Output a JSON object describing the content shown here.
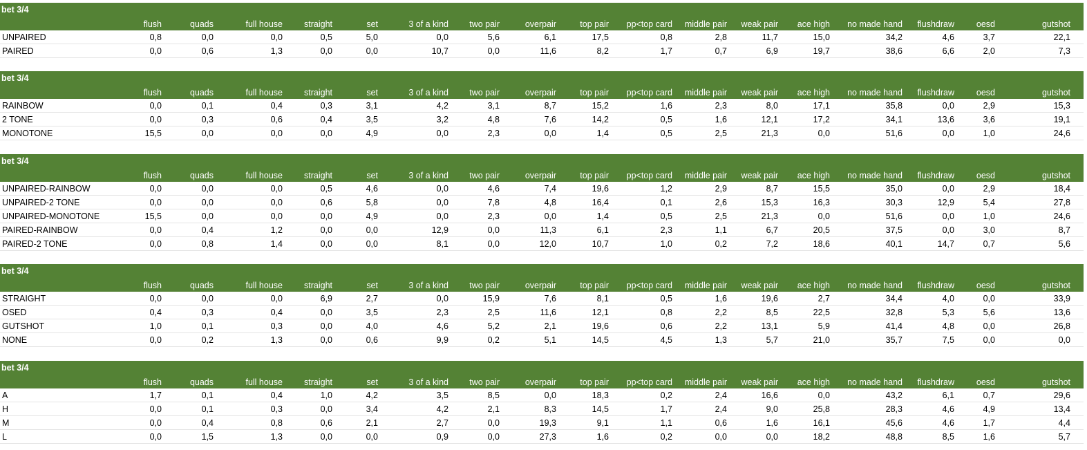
{
  "columns": [
    "flush",
    "quads",
    "full house",
    "straight",
    "set",
    "3 of a kind",
    "two pair",
    "overpair",
    "top pair",
    "pp<top card",
    "middle pair",
    "weak pair",
    "ace high",
    "no made hand",
    "flushdraw",
    "oesd",
    "gutshot"
  ],
  "tables": [
    {
      "title": "bet 3/4",
      "rows": [
        {
          "label": "UNPAIRED",
          "values": [
            "0,8",
            "0,0",
            "0,0",
            "0,5",
            "5,0",
            "0,0",
            "5,6",
            "6,1",
            "17,5",
            "0,8",
            "2,8",
            "11,7",
            "15,0",
            "34,2",
            "4,6",
            "3,7",
            "22,1"
          ]
        },
        {
          "label": "PAIRED",
          "values": [
            "0,0",
            "0,6",
            "1,3",
            "0,0",
            "0,0",
            "10,7",
            "0,0",
            "11,6",
            "8,2",
            "1,7",
            "0,7",
            "6,9",
            "19,7",
            "38,6",
            "6,6",
            "2,0",
            "7,3"
          ]
        }
      ]
    },
    {
      "title": "bet 3/4",
      "rows": [
        {
          "label": "RAINBOW",
          "values": [
            "0,0",
            "0,1",
            "0,4",
            "0,3",
            "3,1",
            "4,2",
            "3,1",
            "8,7",
            "15,2",
            "1,6",
            "2,3",
            "8,0",
            "17,1",
            "35,8",
            "0,0",
            "2,9",
            "15,3"
          ]
        },
        {
          "label": "2 TONE",
          "values": [
            "0,0",
            "0,3",
            "0,6",
            "0,4",
            "3,5",
            "3,2",
            "4,8",
            "7,6",
            "14,2",
            "0,5",
            "1,6",
            "12,1",
            "17,2",
            "34,1",
            "13,6",
            "3,6",
            "19,1"
          ]
        },
        {
          "label": "MONOTONE",
          "values": [
            "15,5",
            "0,0",
            "0,0",
            "0,0",
            "4,9",
            "0,0",
            "2,3",
            "0,0",
            "1,4",
            "0,5",
            "2,5",
            "21,3",
            "0,0",
            "51,6",
            "0,0",
            "1,0",
            "24,6"
          ]
        }
      ]
    },
    {
      "title": "bet 3/4",
      "rows": [
        {
          "label": "UNPAIRED-RAINBOW",
          "values": [
            "0,0",
            "0,0",
            "0,0",
            "0,5",
            "4,6",
            "0,0",
            "4,6",
            "7,4",
            "19,6",
            "1,2",
            "2,9",
            "8,7",
            "15,5",
            "35,0",
            "0,0",
            "2,9",
            "18,4"
          ]
        },
        {
          "label": "UNPAIRED-2 TONE",
          "values": [
            "0,0",
            "0,0",
            "0,0",
            "0,6",
            "5,8",
            "0,0",
            "7,8",
            "4,8",
            "16,4",
            "0,1",
            "2,6",
            "15,3",
            "16,3",
            "30,3",
            "12,9",
            "5,4",
            "27,8"
          ]
        },
        {
          "label": "UNPAIRED-MONOTONE",
          "values": [
            "15,5",
            "0,0",
            "0,0",
            "0,0",
            "4,9",
            "0,0",
            "2,3",
            "0,0",
            "1,4",
            "0,5",
            "2,5",
            "21,3",
            "0,0",
            "51,6",
            "0,0",
            "1,0",
            "24,6"
          ]
        },
        {
          "label": "PAIRED-RAINBOW",
          "values": [
            "0,0",
            "0,4",
            "1,2",
            "0,0",
            "0,0",
            "12,9",
            "0,0",
            "11,3",
            "6,1",
            "2,3",
            "1,1",
            "6,7",
            "20,5",
            "37,5",
            "0,0",
            "3,0",
            "8,7"
          ]
        },
        {
          "label": "PAIRED-2 TONE",
          "values": [
            "0,0",
            "0,8",
            "1,4",
            "0,0",
            "0,0",
            "8,1",
            "0,0",
            "12,0",
            "10,7",
            "1,0",
            "0,2",
            "7,2",
            "18,6",
            "40,1",
            "14,7",
            "0,7",
            "5,6"
          ]
        }
      ]
    },
    {
      "title": "bet 3/4",
      "rows": [
        {
          "label": "STRAIGHT",
          "values": [
            "0,0",
            "0,0",
            "0,0",
            "6,9",
            "2,7",
            "0,0",
            "15,9",
            "7,6",
            "8,1",
            "0,5",
            "1,6",
            "19,6",
            "2,7",
            "34,4",
            "4,0",
            "0,0",
            "33,9"
          ]
        },
        {
          "label": "OSED",
          "values": [
            "0,4",
            "0,3",
            "0,4",
            "0,0",
            "3,5",
            "2,3",
            "2,5",
            "11,6",
            "12,1",
            "0,8",
            "2,2",
            "8,5",
            "22,5",
            "32,8",
            "5,3",
            "5,6",
            "13,6"
          ]
        },
        {
          "label": "GUTSHOT",
          "values": [
            "1,0",
            "0,1",
            "0,3",
            "0,0",
            "4,0",
            "4,6",
            "5,2",
            "2,1",
            "19,6",
            "0,6",
            "2,2",
            "13,1",
            "5,9",
            "41,4",
            "4,8",
            "0,0",
            "26,8"
          ]
        },
        {
          "label": "NONE",
          "values": [
            "0,0",
            "0,2",
            "1,3",
            "0,0",
            "0,6",
            "9,9",
            "0,2",
            "5,1",
            "14,5",
            "4,5",
            "1,3",
            "5,7",
            "21,0",
            "35,7",
            "7,5",
            "0,0",
            "0,0"
          ]
        }
      ]
    },
    {
      "title": "bet 3/4",
      "rows": [
        {
          "label": "A",
          "values": [
            "1,7",
            "0,1",
            "0,4",
            "1,0",
            "4,2",
            "3,5",
            "8,5",
            "0,0",
            "18,3",
            "0,2",
            "2,4",
            "16,6",
            "0,0",
            "43,2",
            "6,1",
            "0,7",
            "29,6"
          ]
        },
        {
          "label": "H",
          "values": [
            "0,0",
            "0,1",
            "0,3",
            "0,0",
            "3,4",
            "4,2",
            "2,1",
            "8,3",
            "14,5",
            "1,7",
            "2,4",
            "9,0",
            "25,8",
            "28,3",
            "4,6",
            "4,9",
            "13,4"
          ]
        },
        {
          "label": "M",
          "values": [
            "0,0",
            "0,4",
            "0,8",
            "0,6",
            "2,1",
            "2,7",
            "0,0",
            "19,3",
            "9,1",
            "1,1",
            "0,6",
            "1,6",
            "16,1",
            "45,6",
            "4,6",
            "1,7",
            "4,4"
          ]
        },
        {
          "label": "L",
          "values": [
            "0,0",
            "1,5",
            "1,3",
            "0,0",
            "0,0",
            "0,9",
            "0,0",
            "27,3",
            "1,6",
            "0,2",
            "0,0",
            "0,0",
            "18,2",
            "48,8",
            "8,5",
            "1,6",
            "5,7"
          ]
        }
      ]
    }
  ]
}
